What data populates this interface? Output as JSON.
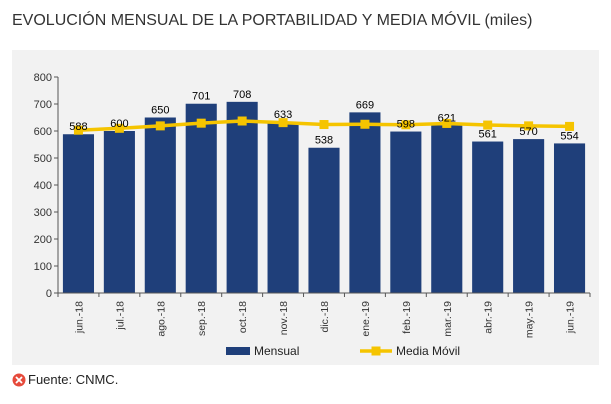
{
  "header": {
    "title": "EVOLUCIÓN MENSUAL DE LA PORTABILIDAD Y MEDIA MÓVIL (miles)"
  },
  "footer": {
    "source_text": "Fuente: CNMC.",
    "source_icon": "close-circle-icon",
    "source_icon_color": "#e64a3b"
  },
  "colors": {
    "bar": "#1f3f7a",
    "line": "#f5c400",
    "axis": "#555555",
    "background": "#f2f2f2"
  },
  "chart_data": {
    "type": "bar",
    "categories": [
      "jun.-18",
      "jul.-18",
      "ago.-18",
      "sep.-18",
      "oct.-18",
      "nov.-18",
      "dic.-18",
      "ene.-19",
      "feb.-19",
      "mar.-19",
      "abr.-19",
      "may.-19",
      "jun.-19"
    ],
    "series": [
      {
        "name": "Mensual",
        "type": "bar",
        "values": [
          588,
          600,
          650,
          701,
          708,
          633,
          538,
          669,
          598,
          621,
          561,
          570,
          554
        ]
      },
      {
        "name": "Media Móvil",
        "type": "line",
        "values": [
          603,
          610,
          619,
          629,
          637,
          631,
          624,
          625,
          623,
          628,
          622,
          619,
          617
        ]
      }
    ],
    "title": "",
    "xlabel": "",
    "ylabel": "",
    "ylim": [
      0,
      800
    ],
    "yticks": [
      0,
      100,
      200,
      300,
      400,
      500,
      600,
      700,
      800
    ],
    "grid": false,
    "legend_position": "bottom"
  }
}
